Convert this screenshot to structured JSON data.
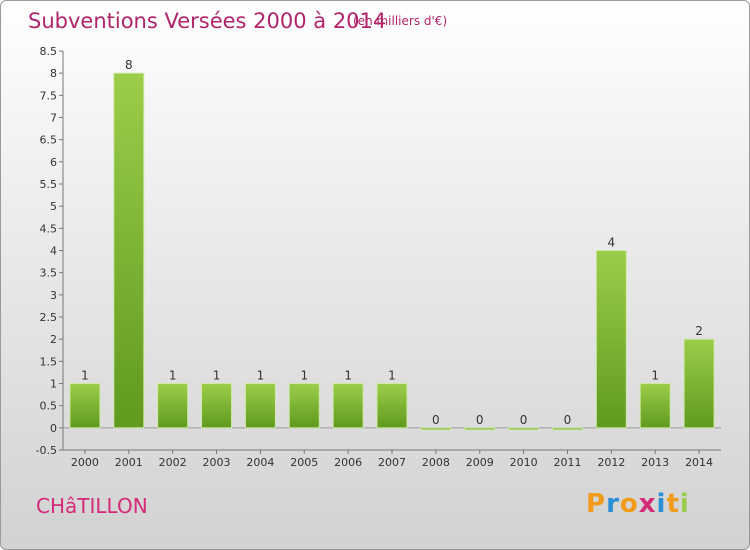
{
  "header": {
    "title": "Subventions Versées 2000 à 2014",
    "subtitle": "(en milliers d'€)"
  },
  "footer": {
    "commune": "CHâTILLON",
    "brand": "Proxiti"
  },
  "colors": {
    "title": "#b0246a",
    "commune": "#d52a7a",
    "bar_top": "#9ccd4a",
    "bar_bottom": "#5f9a1e",
    "brand_letters": [
      "#f29a1a",
      "#2b8fd8",
      "#f29a1a",
      "#d52a7a",
      "#2b8fd8",
      "#f29a1a",
      "#9ccd4a"
    ]
  },
  "chart_data": {
    "type": "bar",
    "title": "Subventions Versées 2000 à 2014",
    "subtitle": "(en milliers d'€)",
    "categories": [
      "2000",
      "2001",
      "2002",
      "2003",
      "2004",
      "2005",
      "2006",
      "2007",
      "2008",
      "2009",
      "2010",
      "2011",
      "2012",
      "2013",
      "2014"
    ],
    "values": [
      1,
      8,
      1,
      1,
      1,
      1,
      1,
      1,
      0,
      0,
      0,
      0,
      4,
      1,
      2
    ],
    "value_labels": [
      "1",
      "8",
      "1",
      "1",
      "1",
      "1",
      "1",
      "1",
      "0",
      "0",
      "0",
      "0",
      "4",
      "1",
      "2"
    ],
    "ylim": [
      -0.5,
      8.5
    ],
    "yticks": [
      "-0.5",
      "0",
      "0.5",
      "1",
      "1.5",
      "2",
      "2.5",
      "3",
      "3.5",
      "4",
      "4.5",
      "5",
      "5.5",
      "6",
      "6.5",
      "7",
      "7.5",
      "8",
      "8.5"
    ],
    "ytick_values": [
      -0.5,
      0,
      0.5,
      1,
      1.5,
      2,
      2.5,
      3,
      3.5,
      4,
      4.5,
      5,
      5.5,
      6,
      6.5,
      7,
      7.5,
      8,
      8.5
    ],
    "xlabel": "",
    "ylabel": "",
    "grid": false,
    "legend": "none"
  }
}
